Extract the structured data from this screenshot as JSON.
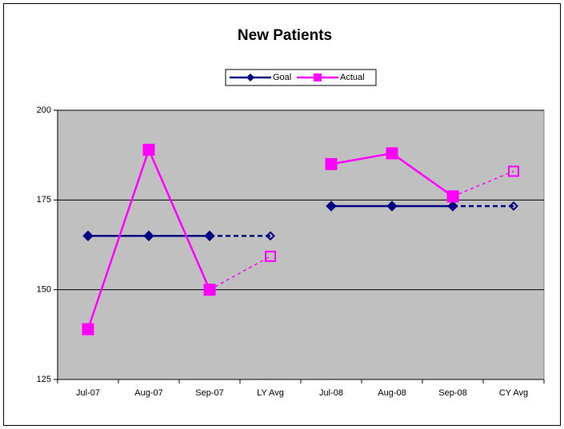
{
  "chart_data": {
    "type": "line",
    "title": "New Patients",
    "categories": [
      "Jul-07",
      "Aug-07",
      "Sep-07",
      "LY Avg",
      "Jul-08",
      "Aug-08",
      "Sep-08",
      "CY Avg"
    ],
    "series": [
      {
        "name": "Goal",
        "color": "#000080",
        "values": [
          165,
          165,
          165,
          165,
          173.3,
          173.3,
          173.3,
          173.3
        ]
      },
      {
        "name": "Actual",
        "color": "#ff00ff",
        "values": [
          139,
          189,
          150,
          159.3,
          185,
          188,
          176,
          183
        ]
      }
    ],
    "ylim": [
      125,
      200
    ],
    "yticks": [
      125,
      150,
      175,
      200
    ],
    "grid": true,
    "legend": "top"
  }
}
